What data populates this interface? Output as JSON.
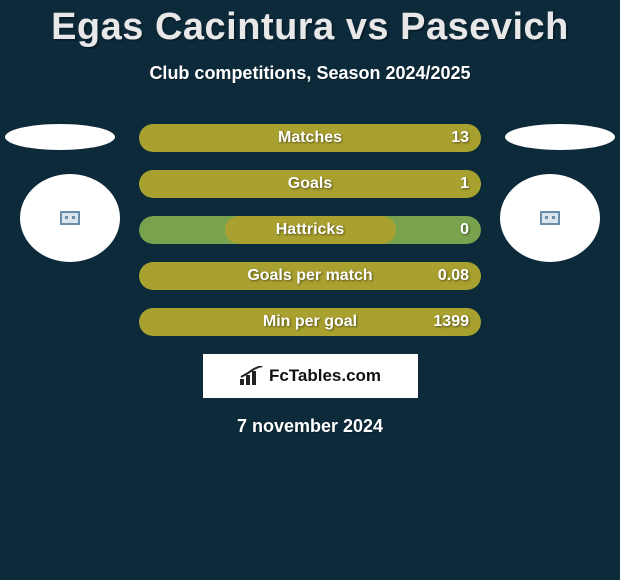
{
  "title": "Egas Cacintura vs Pasevich",
  "subtitle": "Club competitions, Season 2024/2025",
  "date": "7 november 2024",
  "brand": "FcTables.com",
  "colors": {
    "background": "#0c2a3a",
    "bar_primary": "#a9a12f",
    "bar_secondary": "#78a24e",
    "text": "#ffffff"
  },
  "bars": [
    {
      "label": "Matches",
      "value_right": "13",
      "fill_pct": 100,
      "fill_side": "left",
      "fill_color": "#a9a12f",
      "track_color": "#78a24e"
    },
    {
      "label": "Goals",
      "value_right": "1",
      "fill_pct": 100,
      "fill_side": "left",
      "fill_color": "#a9a12f",
      "track_color": "#78a24e"
    },
    {
      "label": "Hattricks",
      "value_right": "0",
      "fill_pct": 50,
      "fill_side": "center",
      "fill_color": "#a9a12f",
      "track_color": "#78a24e"
    },
    {
      "label": "Goals per match",
      "value_right": "0.08",
      "fill_pct": 100,
      "fill_side": "left",
      "fill_color": "#a9a12f",
      "track_color": "#78a24e"
    },
    {
      "label": "Min per goal",
      "value_right": "1399",
      "fill_pct": 100,
      "fill_side": "left",
      "fill_color": "#a9a12f",
      "track_color": "#78a24e"
    }
  ]
}
